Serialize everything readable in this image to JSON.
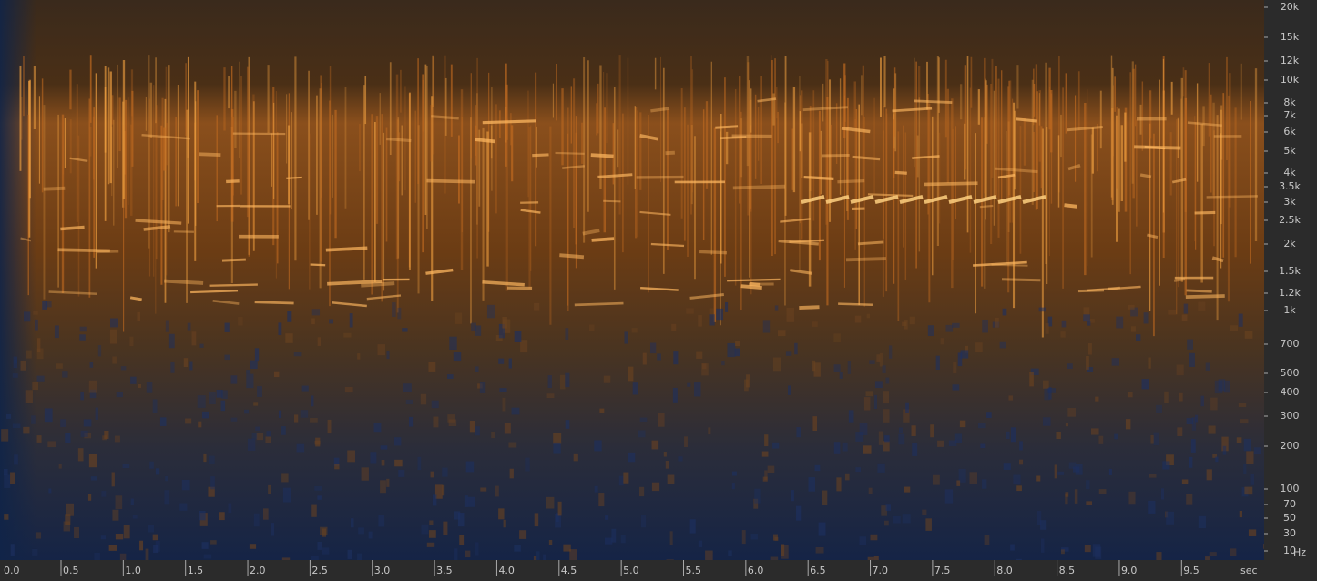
{
  "frequency_axis": {
    "labels": [
      "20k",
      "15k",
      "12k",
      "10k",
      "8k",
      "7k",
      "6k",
      "5k",
      "4k",
      "3.5k",
      "3k",
      "2.5k",
      "2k",
      "1.5k",
      "1.2k",
      "1k",
      "700",
      "500",
      "400",
      "300",
      "200",
      "100",
      "70",
      "50",
      "30",
      "10"
    ],
    "unit": "Hz"
  },
  "time_axis": {
    "labels": [
      "0.0",
      "0.5",
      "1.0",
      "1.5",
      "2.0",
      "2.5",
      "3.0",
      "3.5",
      "4.0",
      "4.5",
      "5.0",
      "5.5",
      "6.0",
      "6.5",
      "7.0",
      "7.5",
      "8.0",
      "8.5",
      "9.0",
      "9.5"
    ],
    "unit": "sec"
  }
}
